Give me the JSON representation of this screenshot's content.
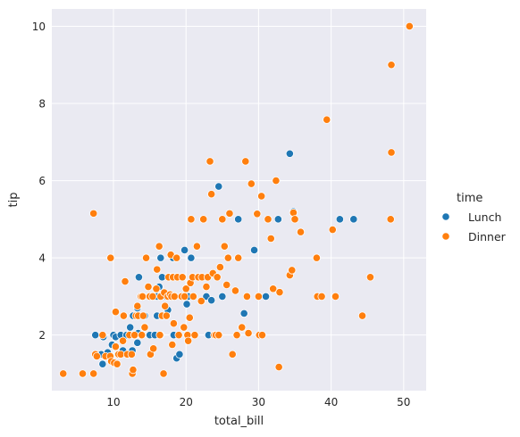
{
  "chart_data": {
    "type": "scatter",
    "xlabel": "total_bill",
    "ylabel": "tip",
    "xlim": [
      1.5,
      53.1
    ],
    "ylim": [
      0.56,
      10.45
    ],
    "xticks": [
      10,
      20,
      30,
      40,
      50
    ],
    "yticks": [
      2,
      4,
      6,
      8,
      10
    ],
    "grid": true,
    "legend": {
      "title": "time",
      "placement": "right"
    },
    "colors": {
      "Lunch": "#1f77b4",
      "Dinner": "#ff7f0e",
      "plot_background": "#eaeaf2",
      "grid": "#ffffff"
    },
    "series": [
      {
        "name": "Lunch",
        "points": [
          [
            7.5,
            2.0
          ],
          [
            8.3,
            1.5
          ],
          [
            8.5,
            1.25
          ],
          [
            8.6,
            1.95
          ],
          [
            9.2,
            1.55
          ],
          [
            9.8,
            1.75
          ],
          [
            10.0,
            2.0
          ],
          [
            10.3,
            1.95
          ],
          [
            10.6,
            1.5
          ],
          [
            11.0,
            2.0
          ],
          [
            11.3,
            1.6
          ],
          [
            11.8,
            2.0
          ],
          [
            12.0,
            1.5
          ],
          [
            12.3,
            2.2
          ],
          [
            12.6,
            1.6
          ],
          [
            12.7,
            2.5
          ],
          [
            13.0,
            2.0
          ],
          [
            13.3,
            1.8
          ],
          [
            13.3,
            2.7
          ],
          [
            13.4,
            2.05
          ],
          [
            13.5,
            3.5
          ],
          [
            14.0,
            3.0
          ],
          [
            14.3,
            2.5
          ],
          [
            15.0,
            2.0
          ],
          [
            15.4,
            3.0
          ],
          [
            15.7,
            2.0
          ],
          [
            16.0,
            3.0
          ],
          [
            16.0,
            2.5
          ],
          [
            16.3,
            3.25
          ],
          [
            16.5,
            4.0
          ],
          [
            16.5,
            2.0
          ],
          [
            16.7,
            3.5
          ],
          [
            17.3,
            3.0
          ],
          [
            17.5,
            2.65
          ],
          [
            17.8,
            3.5
          ],
          [
            18.0,
            3.0
          ],
          [
            18.2,
            4.0
          ],
          [
            18.3,
            2.0
          ],
          [
            18.7,
            1.4
          ],
          [
            19.1,
            1.5
          ],
          [
            19.4,
            3.0
          ],
          [
            19.8,
            4.2
          ],
          [
            20.1,
            2.8
          ],
          [
            20.3,
            3.0
          ],
          [
            20.7,
            4.0
          ],
          [
            22.8,
            3.0
          ],
          [
            23.1,
            2.0
          ],
          [
            23.5,
            2.9
          ],
          [
            24.5,
            5.85
          ],
          [
            25.0,
            3.0
          ],
          [
            27.2,
            5.0
          ],
          [
            28.0,
            2.56
          ],
          [
            29.4,
            4.2
          ],
          [
            31.0,
            3.0
          ],
          [
            32.7,
            5.0
          ],
          [
            34.3,
            6.7
          ],
          [
            34.8,
            5.2
          ],
          [
            41.2,
            5.0
          ],
          [
            43.1,
            5.0
          ]
        ]
      },
      {
        "name": "Dinner",
        "points": [
          [
            3.07,
            1.0
          ],
          [
            5.75,
            1.0
          ],
          [
            7.25,
            1.0
          ],
          [
            7.25,
            5.15
          ],
          [
            7.5,
            1.5
          ],
          [
            7.7,
            1.45
          ],
          [
            8.5,
            2.0
          ],
          [
            8.9,
            1.45
          ],
          [
            9.55,
            1.45
          ],
          [
            9.6,
            4.0
          ],
          [
            9.7,
            1.32
          ],
          [
            10.1,
            1.28
          ],
          [
            10.3,
            1.7
          ],
          [
            10.3,
            2.6
          ],
          [
            10.5,
            1.25
          ],
          [
            10.7,
            1.5
          ],
          [
            11.0,
            1.5
          ],
          [
            11.3,
            1.85
          ],
          [
            11.4,
            2.5
          ],
          [
            11.6,
            3.39
          ],
          [
            11.9,
            1.5
          ],
          [
            12.2,
            2.0
          ],
          [
            12.5,
            1.5
          ],
          [
            12.6,
            1.0
          ],
          [
            12.7,
            1.1
          ],
          [
            12.9,
            2.0
          ],
          [
            13.1,
            2.5
          ],
          [
            13.3,
            2.75
          ],
          [
            13.4,
            2.5
          ],
          [
            13.8,
            3.0
          ],
          [
            13.9,
            2.0
          ],
          [
            14.0,
            3.0
          ],
          [
            14.1,
            2.5
          ],
          [
            14.3,
            2.2
          ],
          [
            14.5,
            4.0
          ],
          [
            14.8,
            3.25
          ],
          [
            15.0,
            3.0
          ],
          [
            15.1,
            1.5
          ],
          [
            15.4,
            3.0
          ],
          [
            15.5,
            1.65
          ],
          [
            15.9,
            3.2
          ],
          [
            16.0,
            3.7
          ],
          [
            16.3,
            4.3
          ],
          [
            16.4,
            2.0
          ],
          [
            16.5,
            3.0
          ],
          [
            16.7,
            2.5
          ],
          [
            16.9,
            1.0
          ],
          [
            17.0,
            3.1
          ],
          [
            17.1,
            2.75
          ],
          [
            17.3,
            2.5
          ],
          [
            17.5,
            3.0
          ],
          [
            17.6,
            3.5
          ],
          [
            17.8,
            3.05
          ],
          [
            17.9,
            4.08
          ],
          [
            18.0,
            3.0
          ],
          [
            18.1,
            1.75
          ],
          [
            18.2,
            3.5
          ],
          [
            18.3,
            2.3
          ],
          [
            18.4,
            3.0
          ],
          [
            18.7,
            4.0
          ],
          [
            18.8,
            3.5
          ],
          [
            19.0,
            2.0
          ],
          [
            19.4,
            3.0
          ],
          [
            19.5,
            3.5
          ],
          [
            19.7,
            2.2
          ],
          [
            19.8,
            3.0
          ],
          [
            20.0,
            3.2
          ],
          [
            20.2,
            2.0
          ],
          [
            20.3,
            1.85
          ],
          [
            20.5,
            2.45
          ],
          [
            20.6,
            3.35
          ],
          [
            20.7,
            5.0
          ],
          [
            20.9,
            3.5
          ],
          [
            21.0,
            3.0
          ],
          [
            21.2,
            2.0
          ],
          [
            21.5,
            4.3
          ],
          [
            21.7,
            3.5
          ],
          [
            22.1,
            2.88
          ],
          [
            22.2,
            3.5
          ],
          [
            22.4,
            5.0
          ],
          [
            22.8,
            3.25
          ],
          [
            23.0,
            3.5
          ],
          [
            23.3,
            6.5
          ],
          [
            23.5,
            5.65
          ],
          [
            23.7,
            3.6
          ],
          [
            23.9,
            2.0
          ],
          [
            24.1,
            2.0
          ],
          [
            24.3,
            3.5
          ],
          [
            24.5,
            2.0
          ],
          [
            24.7,
            3.76
          ],
          [
            25.0,
            5.0
          ],
          [
            25.3,
            4.3
          ],
          [
            25.6,
            3.3
          ],
          [
            25.8,
            4.0
          ],
          [
            26.0,
            5.15
          ],
          [
            26.4,
            1.5
          ],
          [
            26.8,
            3.15
          ],
          [
            27.0,
            2.0
          ],
          [
            27.2,
            4.0
          ],
          [
            27.7,
            2.2
          ],
          [
            28.2,
            6.5
          ],
          [
            28.4,
            3.0
          ],
          [
            28.6,
            2.05
          ],
          [
            29.0,
            5.92
          ],
          [
            29.8,
            5.14
          ],
          [
            30.0,
            3.0
          ],
          [
            30.1,
            2.0
          ],
          [
            30.4,
            5.6
          ],
          [
            30.5,
            2.0
          ],
          [
            31.3,
            5.0
          ],
          [
            31.7,
            4.5
          ],
          [
            32.0,
            3.2
          ],
          [
            32.4,
            6.0
          ],
          [
            32.8,
            1.17
          ],
          [
            32.9,
            3.11
          ],
          [
            34.3,
            3.55
          ],
          [
            34.6,
            3.68
          ],
          [
            34.8,
            5.17
          ],
          [
            35.0,
            5.0
          ],
          [
            35.8,
            4.67
          ],
          [
            38.0,
            4.0
          ],
          [
            38.1,
            3.0
          ],
          [
            38.7,
            3.0
          ],
          [
            39.4,
            7.58
          ],
          [
            40.2,
            4.73
          ],
          [
            40.6,
            3.0
          ],
          [
            44.3,
            2.5
          ],
          [
            45.4,
            3.5
          ],
          [
            48.2,
            5.0
          ],
          [
            48.3,
            6.73
          ],
          [
            48.3,
            9.0
          ],
          [
            50.8,
            10.0
          ]
        ]
      }
    ]
  }
}
